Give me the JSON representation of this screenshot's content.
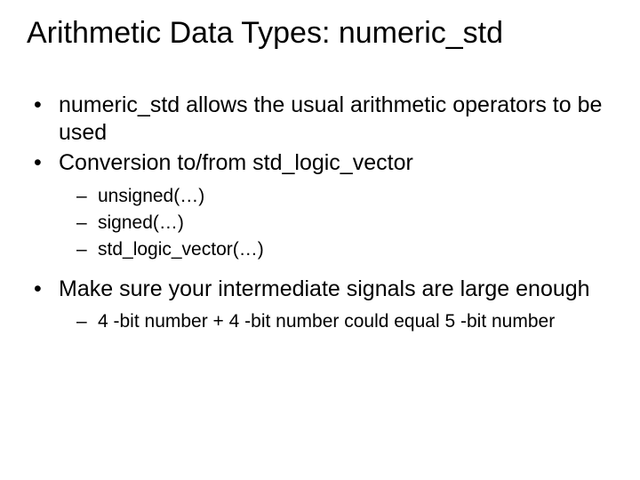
{
  "background_color": "#ffffff",
  "text_color": "#000000",
  "title": {
    "text": "Arithmetic Data Types: numeric_std",
    "fontsize": 34,
    "fontweight": "normal"
  },
  "bullets": [
    {
      "text": "numeric_std allows the usual arithmetic operators to be used",
      "fontsize": 25,
      "children": []
    },
    {
      "text": "Conversion to/from std_logic_vector",
      "fontsize": 25,
      "children": [
        {
          "text": "unsigned(…)",
          "fontsize": 21
        },
        {
          "text": "signed(…)",
          "fontsize": 21
        },
        {
          "text": "std_logic_vector(…)",
          "fontsize": 21
        }
      ]
    },
    {
      "text": "Make sure your intermediate signals are large enough",
      "fontsize": 25,
      "children": [
        {
          "text": "4 -bit number + 4 -bit number could equal 5 -bit number",
          "fontsize": 21
        }
      ]
    }
  ]
}
